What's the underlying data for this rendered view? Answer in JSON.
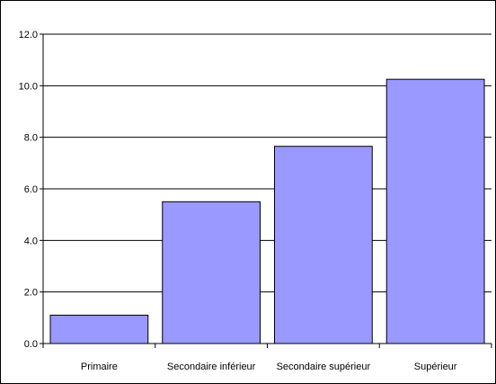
{
  "chart_data": {
    "type": "bar",
    "categories": [
      "Primaire",
      "Secondaire inférieur",
      "Secondaire supérieur",
      "Supérieur"
    ],
    "values": [
      1.1,
      5.5,
      7.65,
      10.25
    ],
    "yticks": [
      "0.0",
      "2.0",
      "4.0",
      "6.0",
      "8.0",
      "10.0",
      "12.0"
    ],
    "ylim": [
      0,
      12
    ],
    "grid": true,
    "legend": "none",
    "colors": {
      "bar_fill": "#9999ff",
      "bar_stroke": "#000000",
      "grid": "#000000"
    }
  }
}
